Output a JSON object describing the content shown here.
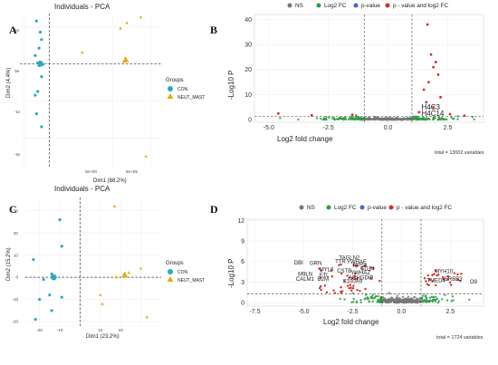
{
  "figure": {
    "panel_letters": [
      "A",
      "B",
      "C",
      "D"
    ]
  },
  "colors": {
    "con": "#2aa9bf",
    "neut_mast": "#e0ad17",
    "ns": "#777777",
    "log2fc": "#2e9e44",
    "pvalue": "#4466cc",
    "both": "#d62b2b"
  },
  "chart_data": [
    {
      "type": "scatter",
      "panel": "A",
      "title": "Individuals - PCA",
      "xlabel": "Dim1 (88.2%)",
      "ylabel": "Dim2 (4.4%)",
      "xlim": [
        -230000,
        880000
      ],
      "ylim": [
        -280000,
        135000
      ],
      "x_ticks": [
        "0e+00",
        "5e+05"
      ],
      "y_ticks": [
        "1e+05",
        "0e+00",
        "-1e+05",
        "-2e+05"
      ],
      "legend_title": "Groups",
      "legend": [
        "CON",
        "NEUT_MAST"
      ],
      "series": [
        {
          "name": "CON",
          "shape": "circle",
          "x": [
            -100000,
            -70000,
            -60000,
            -80000,
            -110000,
            -90000,
            -50000,
            -60000,
            -80000,
            -60000,
            -90000,
            -110000,
            -100000,
            -60000
          ],
          "y": [
            115000,
            85000,
            65000,
            42000,
            22000,
            2000,
            -2000,
            -1000,
            -5000,
            -35000,
            -75000,
            -85000,
            -135000,
            -170000
          ],
          "centroid": [
            -70000,
            0
          ]
        },
        {
          "name": "NEUT_MAST",
          "shape": "triangle",
          "x": [
            260000,
            610000,
            560000,
            720000,
            590000,
            760000
          ],
          "y": [
            30000,
            110000,
            95000,
            125000,
            5000,
            -250000
          ],
          "centroid": [
            600000,
            10000
          ]
        }
      ]
    },
    {
      "type": "scatter",
      "panel": "B",
      "title": "",
      "xlabel": "Log2 fold change",
      "ylabel": "-Log10 P",
      "xlim": [
        -5.6,
        4.0
      ],
      "ylim": [
        -1,
        42
      ],
      "x_ticks": [
        "-5.0",
        "-2.5",
        "0.0",
        "2.5"
      ],
      "y_ticks": [
        "0",
        "10",
        "20",
        "30",
        "40"
      ],
      "legend": [
        "NS",
        "Log2 FC",
        "p-value",
        "p - value and log2 FC"
      ],
      "cutoffs": {
        "log2fc": [
          -1,
          1
        ],
        "p": 1.3
      },
      "labels": [
        {
          "text": "H4C3",
          "x": 1.4,
          "y": 4
        },
        {
          "text": "H4C14",
          "x": 1.4,
          "y": 1.5
        }
      ],
      "red_points": [
        [
          1.65,
          38
        ],
        [
          1.8,
          26
        ],
        [
          2.0,
          23
        ],
        [
          1.9,
          21
        ],
        [
          2.1,
          18
        ],
        [
          1.7,
          15
        ],
        [
          1.5,
          12
        ],
        [
          2.2,
          9
        ],
        [
          1.6,
          7
        ],
        [
          1.9,
          5
        ],
        [
          -4.6,
          2.5
        ],
        [
          -3.2,
          1.8
        ],
        [
          -1.5,
          2.0
        ],
        [
          2.6,
          2.2
        ],
        [
          3.2,
          1.6
        ],
        [
          1.3,
          3.0
        ]
      ],
      "caption": "total = 13002 variables"
    },
    {
      "type": "scatter",
      "panel": "C",
      "title": "Individuals - PCA",
      "xlabel": "Dim1 (23.2%)",
      "ylabel": "Dim2 (15.2%)",
      "xlim": [
        -27,
        40
      ],
      "ylim": [
        -22,
        36
      ],
      "x_ticks": [
        "-20",
        "-10",
        "0",
        "10",
        "20",
        "30"
      ],
      "y_ticks": [
        "30",
        "20",
        "10",
        "0",
        "-10",
        "-20"
      ],
      "legend_title": "Groups",
      "legend": [
        "CON",
        "NEUT_MAST"
      ],
      "series": [
        {
          "name": "CON",
          "shape": "circle",
          "x": [
            -10,
            -9,
            -23,
            -14,
            -18,
            -13,
            -20,
            -15,
            -14,
            -9,
            -22
          ],
          "y": [
            26,
            14,
            8,
            1.5,
            -1,
            0,
            -10,
            -8,
            -15,
            -9,
            -19
          ],
          "centroid": [
            -13,
            0
          ]
        },
        {
          "name": "NEUT_MAST",
          "shape": "triangle",
          "x": [
            17,
            30,
            24,
            18,
            10,
            11,
            33
          ],
          "y": [
            32,
            4,
            2,
            0,
            -8,
            -12,
            -18
          ],
          "centroid": [
            22,
            1
          ]
        }
      ]
    },
    {
      "type": "scatter",
      "panel": "D",
      "title": "",
      "xlabel": "Log2 fold change",
      "ylabel": "-Log10 P",
      "xlim": [
        -7.9,
        4.2
      ],
      "ylim": [
        -0.5,
        12.2
      ],
      "x_ticks": [
        "-7.5",
        "-5.0",
        "-2.5",
        "0.0",
        "2.5"
      ],
      "y_ticks": [
        "0",
        "3",
        "6",
        "9",
        "12"
      ],
      "legend": [
        "NS",
        "Log2 FC",
        "p-value",
        "p - value and log2 FC"
      ],
      "cutoffs": {
        "log2fc": [
          -1,
          1
        ],
        "p": 1.3
      },
      "labels": [
        {
          "text": "TAGLN2",
          "x": -3.2,
          "y": 6.3
        },
        {
          "text": "TTR",
          "x": -3.4,
          "y": 5.8
        },
        {
          "text": "YWHAE",
          "x": -2.8,
          "y": 5.7
        },
        {
          "text": "DBI",
          "x": -5.5,
          "y": 5.6
        },
        {
          "text": "GRN",
          "x": -4.7,
          "y": 5.5
        },
        {
          "text": "RPSA",
          "x": -2.5,
          "y": 5.2
        },
        {
          "text": "MYL6",
          "x": -4.2,
          "y": 4.6
        },
        {
          "text": "CD14",
          "x": -2.1,
          "y": 4.7
        },
        {
          "text": "CSTB",
          "x": -3.3,
          "y": 4.4
        },
        {
          "text": "YWHAZ",
          "x": -2.6,
          "y": 4.1
        },
        {
          "text": "M9LN",
          "x": -5.3,
          "y": 3.9
        },
        {
          "text": "FTL",
          "x": -4.2,
          "y": 3.8
        },
        {
          "text": "ARHGDIB",
          "x": -2.7,
          "y": 3.4
        },
        {
          "text": "MYH10",
          "x": 1.7,
          "y": 4.3
        },
        {
          "text": "CALM1",
          "x": -5.4,
          "y": 3.2
        },
        {
          "text": "B2M",
          "x": -4.3,
          "y": 3.2
        },
        {
          "text": "S100A9",
          "x": -3.0,
          "y": 2.9
        },
        {
          "text": "TMED4",
          "x": 1.3,
          "y": 3.0
        },
        {
          "text": "ERBB3",
          "x": 2.2,
          "y": 3.2
        },
        {
          "text": "O9",
          "x": 3.5,
          "y": 2.8
        }
      ],
      "caption": "total = 1724 variables"
    }
  ]
}
